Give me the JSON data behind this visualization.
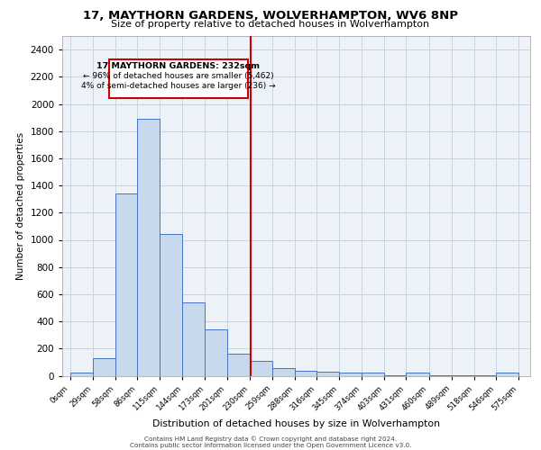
{
  "title": "17, MAYTHORN GARDENS, WOLVERHAMPTON, WV6 8NP",
  "subtitle": "Size of property relative to detached houses in Wolverhampton",
  "xlabel": "Distribution of detached houses by size in Wolverhampton",
  "ylabel": "Number of detached properties",
  "bar_edges": [
    0,
    29,
    58,
    86,
    115,
    144,
    173,
    201,
    230,
    259,
    288,
    316,
    345,
    374,
    403,
    431,
    460,
    489,
    518,
    546,
    575
  ],
  "bar_heights": [
    20,
    130,
    1340,
    1890,
    1040,
    540,
    340,
    165,
    110,
    55,
    35,
    28,
    20,
    20,
    5,
    20,
    5,
    5,
    5,
    20
  ],
  "bar_color": "#c9d9ed",
  "bar_edgecolor": "#4472c4",
  "vline_x": 232,
  "vline_color": "#cc0000",
  "annotation_title": "17 MAYTHORN GARDENS: 232sqm",
  "annotation_line1": "← 96% of detached houses are smaller (5,462)",
  "annotation_line2": "4% of semi-detached houses are larger (236) →",
  "annotation_box_edgecolor": "#cc0000",
  "annotation_box_facecolor": "#ffffff",
  "ylim": [
    0,
    2500
  ],
  "yticks": [
    0,
    200,
    400,
    600,
    800,
    1000,
    1200,
    1400,
    1600,
    1800,
    2000,
    2200,
    2400
  ],
  "xtick_labels": [
    "0sqm",
    "29sqm",
    "58sqm",
    "86sqm",
    "115sqm",
    "144sqm",
    "173sqm",
    "201sqm",
    "230sqm",
    "259sqm",
    "288sqm",
    "316sqm",
    "345sqm",
    "374sqm",
    "403sqm",
    "431sqm",
    "460sqm",
    "489sqm",
    "518sqm",
    "546sqm",
    "575sqm"
  ],
  "grid_color": "#c8d4e3",
  "bg_color": "#edf2f9",
  "footer1": "Contains HM Land Registry data © Crown copyright and database right 2024.",
  "footer2": "Contains public sector information licensed under the Open Government Licence v3.0."
}
